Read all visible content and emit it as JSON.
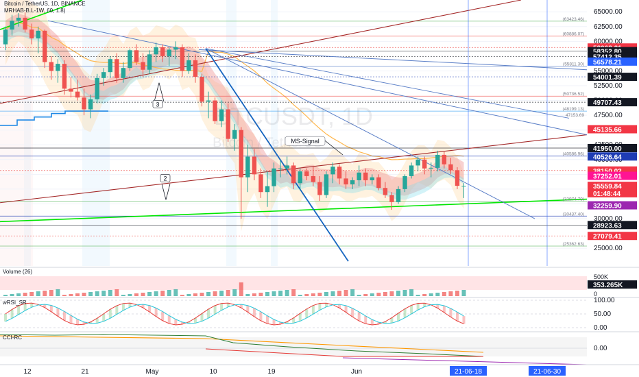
{
  "header": {
    "line1": "Bitcoin / TetherUS, 1D, BINANCE",
    "line2": "MRHAB-B.L-1W, 60, 1.8)"
  },
  "watermark": {
    "symbol": "BTCUSDT, 1D",
    "name": "Bitcoin / TetherUS"
  },
  "chart_data": {
    "type": "candlestick",
    "title": "Bitcoin / TetherUS, 1D, BINANCE",
    "ylim": [
      22000,
      67000
    ],
    "y_ticks": [
      25000,
      30000,
      32500,
      35000,
      37500,
      40000,
      42500,
      45000,
      47500,
      50000,
      52500,
      55000,
      60000,
      62500,
      65000
    ],
    "y_tick_labels": [
      "25000.00",
      "30000.00",
      "32500.00",
      "35000.00",
      "37500.00",
      "40000.00",
      "42500.00",
      "45000.00",
      "47500.00",
      "50000.00",
      "52500.00",
      "55000.00",
      "60000.00",
      "62500.00",
      "65000.00"
    ],
    "x_labels": [
      "12",
      "21",
      "May",
      "10",
      "19",
      "Jun"
    ],
    "x_time_markers": [
      "21-06-18",
      "21-06-30"
    ],
    "candles": [
      [
        59500,
        62500,
        58500,
        62000
      ],
      [
        62000,
        64500,
        61000,
        63500
      ],
      [
        63500,
        64800,
        62500,
        64000
      ],
      [
        64000,
        64900,
        61500,
        62000
      ],
      [
        62000,
        63000,
        59500,
        60500
      ],
      [
        60500,
        62500,
        58000,
        61800
      ],
      [
        61800,
        62000,
        55500,
        56500
      ],
      [
        56500,
        57500,
        53500,
        55000
      ],
      [
        55000,
        57000,
        53000,
        56200
      ],
      [
        56200,
        56800,
        51000,
        52000
      ],
      [
        52000,
        54000,
        50500,
        51500
      ],
      [
        51500,
        53500,
        50000,
        50500
      ],
      [
        50500,
        52000,
        47500,
        48500
      ],
      [
        48500,
        51000,
        47000,
        50200
      ],
      [
        50200,
        54500,
        49500,
        53800
      ],
      [
        53800,
        55500,
        52500,
        54800
      ],
      [
        54800,
        57500,
        53800,
        57000
      ],
      [
        57000,
        58000,
        53000,
        53800
      ],
      [
        53800,
        56500,
        53000,
        55500
      ],
      [
        55500,
        58800,
        55000,
        58500
      ],
      [
        58500,
        59500,
        56000,
        56500
      ],
      [
        56500,
        58000,
        54000,
        55200
      ],
      [
        55200,
        58500,
        54500,
        57800
      ],
      [
        57800,
        59800,
        56500,
        59000
      ],
      [
        59000,
        59500,
        56500,
        57500
      ],
      [
        57500,
        59000,
        55800,
        58600
      ],
      [
        58600,
        60000,
        57000,
        59000
      ],
      [
        59000,
        59500,
        54000,
        55000
      ],
      [
        55000,
        58000,
        54500,
        56800
      ],
      [
        56800,
        57800,
        53000,
        54000
      ],
      [
        54000,
        54500,
        49000,
        49800
      ],
      [
        49800,
        51500,
        47000,
        50000
      ],
      [
        50000,
        50500,
        46000,
        46500
      ],
      [
        46500,
        50000,
        45500,
        48500
      ],
      [
        48500,
        49500,
        43000,
        43500
      ],
      [
        43500,
        46000,
        41500,
        45000
      ],
      [
        45000,
        45500,
        30000,
        37000
      ],
      [
        37000,
        42500,
        34500,
        40500
      ],
      [
        40500,
        41800,
        36500,
        37500
      ],
      [
        37500,
        38500,
        33500,
        34500
      ],
      [
        34500,
        38000,
        32000,
        35500
      ],
      [
        35500,
        39500,
        34500,
        38500
      ],
      [
        38500,
        39800,
        37000,
        38500
      ],
      [
        38500,
        40500,
        37500,
        39000
      ],
      [
        39000,
        39500,
        35000,
        36000
      ],
      [
        36000,
        38500,
        34800,
        38000
      ],
      [
        38000,
        38500,
        36500,
        37200
      ],
      [
        37200,
        38800,
        35500,
        36200
      ],
      [
        36200,
        37200,
        33000,
        34000
      ],
      [
        34000,
        38000,
        33500,
        37500
      ],
      [
        37500,
        39500,
        36000,
        38800
      ],
      [
        38800,
        39200,
        35800,
        36800
      ],
      [
        36800,
        38000,
        35000,
        35800
      ],
      [
        35800,
        37000,
        35000,
        36500
      ],
      [
        36500,
        39000,
        35500,
        37800
      ],
      [
        37800,
        38500,
        35500,
        36500
      ],
      [
        36500,
        37500,
        35800,
        37000
      ],
      [
        37000,
        37500,
        34800,
        35200
      ],
      [
        35200,
        36200,
        33500,
        34000
      ],
      [
        34000,
        34500,
        31500,
        32800
      ],
      [
        32800,
        35500,
        32500,
        35000
      ],
      [
        35000,
        37500,
        34500,
        37200
      ],
      [
        37200,
        39500,
        36800,
        39000
      ],
      [
        39000,
        40500,
        38000,
        40000
      ],
      [
        40000,
        40500,
        37500,
        38500
      ],
      [
        38500,
        39500,
        37000,
        38600
      ],
      [
        38600,
        41500,
        38000,
        40800
      ],
      [
        40800,
        41300,
        38500,
        39200
      ],
      [
        39200,
        40300,
        37500,
        38200
      ],
      [
        38200,
        38700,
        35000,
        35560
      ],
      [
        35560,
        36000,
        33500,
        35560
      ]
    ],
    "price_labels": [
      {
        "text": "58968.31",
        "price": 58968.31,
        "color": "#f23645"
      },
      {
        "text": "58352.80",
        "price": 58352.8,
        "color": "#131722"
      },
      {
        "text": "57412.35",
        "price": 57412.35,
        "color": "#131722"
      },
      {
        "text": "56578.21",
        "price": 56578.21,
        "color": "#2962ff"
      },
      {
        "text": "54001.39",
        "price": 54001.39,
        "color": "#131722"
      },
      {
        "text": "49707.43",
        "price": 49707.43,
        "color": "#131722"
      },
      {
        "text": "45135.66",
        "price": 45135.66,
        "color": "#f23645"
      },
      {
        "text": "41950.00",
        "price": 41950.0,
        "color": "#131722"
      },
      {
        "text": "40526.64",
        "price": 40526.64,
        "color": "#1e3cb4"
      },
      {
        "text": "38150.02",
        "price": 38150.02,
        "color": "#f23645"
      },
      {
        "text": "37252.01",
        "price": 37252.01,
        "color": "#ff1493"
      },
      {
        "text": "35559.84",
        "price": 35559.84,
        "color": "#f23645"
      },
      {
        "text": "01:48:44",
        "price": 34300,
        "color": "#f23645"
      },
      {
        "text": "32259.90",
        "price": 32259.9,
        "color": "#9c27b0"
      },
      {
        "text": "28923.63",
        "price": 28923.63,
        "color": "#131722"
      },
      {
        "text": "27079.41",
        "price": 27079.41,
        "color": "#f23645"
      }
    ],
    "level_labels": [
      {
        "text": "(63423.46)",
        "price": 63423.46
      },
      {
        "text": "(60886.07)",
        "price": 60886.07
      },
      {
        "text": "(55811.30)",
        "price": 55811.3
      },
      {
        "text": "(50736.52)",
        "price": 50736.52
      },
      {
        "text": "(48199.13)",
        "price": 48199.13
      },
      {
        "text": "47153.69",
        "price": 47153.69
      },
      {
        "text": "(40586.96)",
        "price": 40586.96
      },
      {
        "text": "(32974.79)",
        "price": 32974.79
      },
      {
        "text": "(30437.40)",
        "price": 30437.4
      },
      {
        "text": "(25362.63)",
        "price": 25362.63
      }
    ],
    "annotations": [
      "3",
      "2",
      "MS-Signal"
    ]
  },
  "volume_pane": {
    "title": "Volume (26)",
    "ticks": [
      "500K",
      "0"
    ],
    "last_label": "353.265K"
  },
  "wrsi_pane": {
    "title": "wRSI_SR",
    "ticks": [
      "100.00",
      "50.00",
      "0.00"
    ]
  },
  "cci_pane": {
    "title": "CCI-RC",
    "ticks": [
      "0.00"
    ]
  },
  "colors": {
    "up": "#26a69a",
    "down": "#ef5350",
    "grid": "#f0f3fa",
    "green_line": "#00e600",
    "brown_line": "#a52a2a",
    "blue_line": "#5b7fc7"
  }
}
